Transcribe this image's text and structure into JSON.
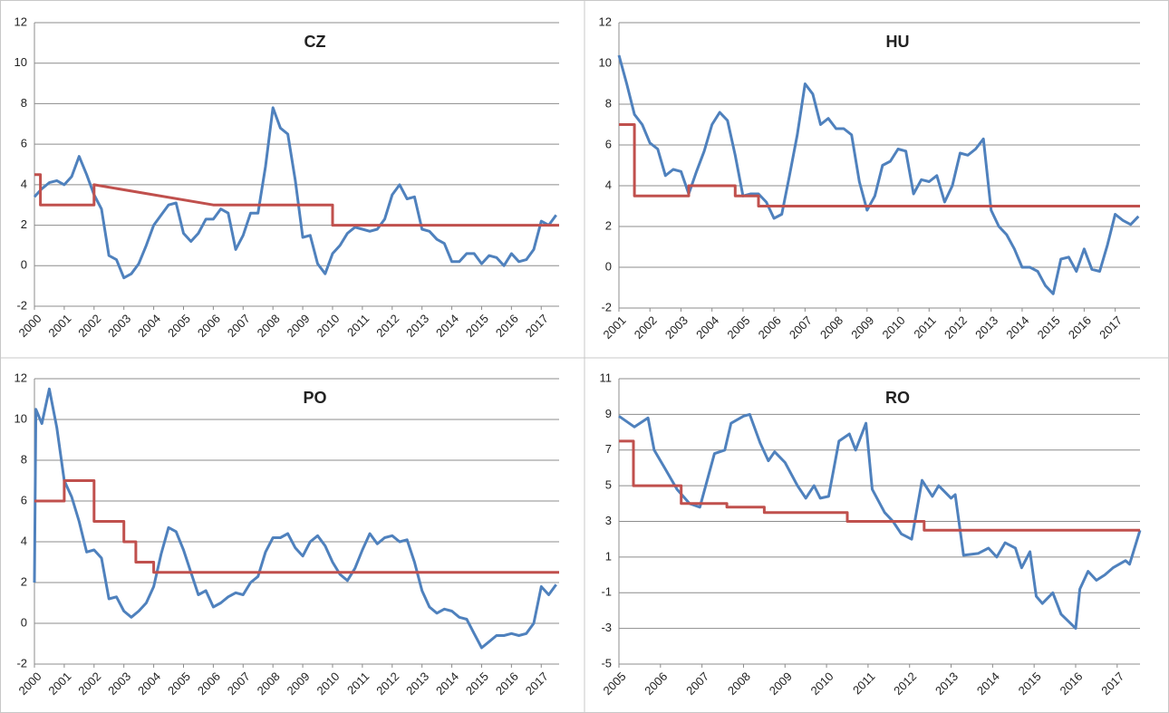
{
  "chart_data": [
    {
      "type": "line",
      "title": "CZ",
      "xlim": [
        2000,
        2017.6
      ],
      "xticks": [
        2000,
        2001,
        2002,
        2003,
        2004,
        2005,
        2006,
        2007,
        2008,
        2009,
        2010,
        2011,
        2012,
        2013,
        2014,
        2015,
        2016,
        2017
      ],
      "ylim": [
        -2,
        12
      ],
      "yticks": [
        -2,
        0,
        2,
        4,
        6,
        8,
        10,
        12
      ],
      "grid": true,
      "series": [
        {
          "color": "#4f81bd",
          "x": [
            2000,
            2000.25,
            2000.5,
            2000.75,
            2001,
            2001.25,
            2001.5,
            2001.75,
            2002,
            2002.25,
            2002.5,
            2002.75,
            2003,
            2003.25,
            2003.5,
            2003.75,
            2004,
            2004.25,
            2004.5,
            2004.75,
            2005,
            2005.25,
            2005.5,
            2005.75,
            2006,
            2006.25,
            2006.5,
            2006.75,
            2007,
            2007.25,
            2007.5,
            2007.75,
            2008,
            2008.25,
            2008.5,
            2008.75,
            2009,
            2009.25,
            2009.5,
            2009.75,
            2010,
            2010.25,
            2010.5,
            2010.75,
            2011,
            2011.25,
            2011.5,
            2011.75,
            2012,
            2012.25,
            2012.5,
            2012.75,
            2013,
            2013.25,
            2013.5,
            2013.75,
            2014,
            2014.25,
            2014.5,
            2014.75,
            2015,
            2015.25,
            2015.5,
            2015.75,
            2016,
            2016.25,
            2016.5,
            2016.75,
            2017,
            2017.25,
            2017.5
          ],
          "values": [
            3.4,
            3.8,
            4.1,
            4.2,
            4.0,
            4.4,
            5.4,
            4.5,
            3.5,
            2.8,
            0.5,
            0.3,
            -0.6,
            -0.4,
            0.1,
            1.0,
            2.0,
            2.5,
            3.0,
            3.1,
            1.6,
            1.2,
            1.6,
            2.3,
            2.3,
            2.8,
            2.6,
            0.8,
            1.5,
            2.6,
            2.6,
            4.9,
            7.8,
            6.8,
            6.5,
            4.2,
            1.4,
            1.5,
            0.1,
            -0.4,
            0.6,
            1.0,
            1.6,
            1.9,
            1.8,
            1.7,
            1.8,
            2.3,
            3.5,
            4.0,
            3.3,
            3.4,
            1.8,
            1.7,
            1.3,
            1.1,
            0.2,
            0.2,
            0.6,
            0.6,
            0.1,
            0.5,
            0.4,
            0.0,
            0.6,
            0.2,
            0.3,
            0.8,
            2.2,
            2.0,
            2.5
          ]
        },
        {
          "color": "#c0504d",
          "x": [
            2000,
            2000.2,
            2000.2,
            2002,
            2002,
            2006,
            2010,
            2010,
            2017.6
          ],
          "values": [
            4.5,
            4.5,
            3,
            3,
            4,
            3,
            3,
            2,
            2
          ]
        }
      ]
    },
    {
      "type": "line",
      "title": "HU",
      "xlim": [
        2001,
        2017.8
      ],
      "xticks": [
        2001,
        2002,
        2003,
        2004,
        2005,
        2006,
        2007,
        2008,
        2009,
        2010,
        2011,
        2012,
        2013,
        2014,
        2015,
        2016,
        2017
      ],
      "ylim": [
        -2,
        12
      ],
      "yticks": [
        -2,
        0,
        2,
        4,
        6,
        8,
        10,
        12
      ],
      "grid": true,
      "series": [
        {
          "color": "#4f81bd",
          "x": [
            2001,
            2001.25,
            2001.5,
            2001.75,
            2002,
            2002.25,
            2002.5,
            2002.75,
            2003,
            2003.25,
            2003.5,
            2003.75,
            2004,
            2004.25,
            2004.5,
            2004.75,
            2005,
            2005.25,
            2005.5,
            2005.75,
            2006,
            2006.25,
            2006.5,
            2006.75,
            2007,
            2007.25,
            2007.5,
            2007.75,
            2008,
            2008.25,
            2008.5,
            2008.75,
            2009,
            2009.25,
            2009.5,
            2009.75,
            2010,
            2010.25,
            2010.5,
            2010.75,
            2011,
            2011.25,
            2011.5,
            2011.75,
            2012,
            2012.25,
            2012.5,
            2012.75,
            2013,
            2013.25,
            2013.5,
            2013.75,
            2014,
            2014.25,
            2014.5,
            2014.75,
            2015,
            2015.25,
            2015.5,
            2015.75,
            2016,
            2016.25,
            2016.5,
            2016.75,
            2017,
            2017.25,
            2017.5,
            2017.75
          ],
          "values": [
            10.4,
            9,
            7.5,
            7.0,
            6.1,
            5.8,
            4.5,
            4.8,
            4.7,
            3.6,
            4.7,
            5.7,
            7.0,
            7.6,
            7.2,
            5.5,
            3.5,
            3.6,
            3.6,
            3.2,
            2.4,
            2.6,
            4.5,
            6.5,
            9.0,
            8.5,
            7.0,
            7.3,
            6.8,
            6.8,
            6.5,
            4.2,
            2.8,
            3.5,
            5.0,
            5.2,
            5.8,
            5.7,
            3.6,
            4.3,
            4.2,
            4.5,
            3.2,
            4.0,
            5.6,
            5.5,
            5.8,
            6.3,
            2.8,
            2.0,
            1.6,
            0.9,
            0.0,
            0.0,
            -0.2,
            -0.9,
            -1.3,
            0.4,
            0.5,
            -0.2,
            0.9,
            -0.1,
            -0.2,
            1.1,
            2.6,
            2.3,
            2.1,
            2.5
          ]
        },
        {
          "color": "#c0504d",
          "x": [
            2001,
            2001.5,
            2001.5,
            2003.25,
            2003.25,
            2004.75,
            2004.75,
            2005.5,
            2005.5,
            2017.8
          ],
          "values": [
            7,
            7,
            3.5,
            3.5,
            4,
            4,
            3.5,
            3.5,
            3,
            3
          ]
        }
      ]
    },
    {
      "type": "line",
      "title": "PO",
      "xlim": [
        2000,
        2017.6
      ],
      "xticks": [
        2000,
        2001,
        2002,
        2003,
        2004,
        2005,
        2006,
        2007,
        2008,
        2009,
        2010,
        2011,
        2012,
        2013,
        2014,
        2015,
        2016,
        2017
      ],
      "ylim": [
        -2,
        12
      ],
      "yticks": [
        -2,
        0,
        2,
        4,
        6,
        8,
        10,
        12
      ],
      "grid": true,
      "series": [
        {
          "color": "#4f81bd",
          "x": [
            2000,
            2000.05,
            2000.25,
            2000.5,
            2000.75,
            2001,
            2001.25,
            2001.5,
            2001.75,
            2002,
            2002.25,
            2002.5,
            2002.75,
            2003,
            2003.25,
            2003.5,
            2003.75,
            2004,
            2004.25,
            2004.5,
            2004.75,
            2005,
            2005.25,
            2005.5,
            2005.75,
            2006,
            2006.25,
            2006.5,
            2006.75,
            2007,
            2007.25,
            2007.5,
            2007.75,
            2008,
            2008.25,
            2008.5,
            2008.75,
            2009,
            2009.25,
            2009.5,
            2009.75,
            2010,
            2010.25,
            2010.5,
            2010.75,
            2011,
            2011.25,
            2011.5,
            2011.75,
            2012,
            2012.25,
            2012.5,
            2012.75,
            2013,
            2013.25,
            2013.5,
            2013.75,
            2014,
            2014.25,
            2014.5,
            2014.75,
            2015,
            2015.25,
            2015.5,
            2015.75,
            2016,
            2016.25,
            2016.5,
            2016.75,
            2017,
            2017.25,
            2017.5
          ],
          "values": [
            2.0,
            10.5,
            9.8,
            11.5,
            9.6,
            7.0,
            6.2,
            5.0,
            3.5,
            3.6,
            3.2,
            1.2,
            1.3,
            0.6,
            0.3,
            0.6,
            1.0,
            1.8,
            3.4,
            4.7,
            4.5,
            3.6,
            2.5,
            1.4,
            1.6,
            0.8,
            1.0,
            1.3,
            1.5,
            1.4,
            2.0,
            2.3,
            3.5,
            4.2,
            4.2,
            4.4,
            3.7,
            3.3,
            4.0,
            4.3,
            3.8,
            3.0,
            2.4,
            2.1,
            2.7,
            3.6,
            4.4,
            3.9,
            4.2,
            4.3,
            4.0,
            4.1,
            3.0,
            1.6,
            0.8,
            0.5,
            0.7,
            0.6,
            0.3,
            0.2,
            -0.5,
            -1.2,
            -0.9,
            -0.6,
            -0.6,
            -0.5,
            -0.6,
            -0.5,
            0.0,
            1.8,
            1.4,
            1.9
          ]
        },
        {
          "color": "#c0504d",
          "x": [
            2000,
            2001,
            2001,
            2002,
            2002,
            2003,
            2003,
            2003.4,
            2003.4,
            2004,
            2004,
            2017.6
          ],
          "values": [
            6,
            6,
            7,
            7,
            5,
            5,
            4,
            4,
            3,
            3,
            2.5,
            2.5
          ]
        }
      ]
    },
    {
      "type": "line",
      "title": "RO",
      "xlim": [
        2005,
        2017.55
      ],
      "xticks": [
        2005,
        2006,
        2007,
        2008,
        2009,
        2010,
        2011,
        2012,
        2013,
        2014,
        2015,
        2016,
        2017
      ],
      "ylim": [
        -5,
        11
      ],
      "yticks": [
        -5,
        -3,
        -1,
        1,
        3,
        5,
        7,
        9,
        11
      ],
      "grid": true,
      "series": [
        {
          "color": "#4f81bd",
          "x": [
            2005,
            2005.37,
            2005.7,
            2005.85,
            2006.1,
            2006.4,
            2006.7,
            2006.95,
            2007.3,
            2007.55,
            2007.7,
            2008.0,
            2008.15,
            2008.4,
            2008.6,
            2008.75,
            2009.0,
            2009.3,
            2009.5,
            2009.7,
            2009.85,
            2010.05,
            2010.3,
            2010.55,
            2010.7,
            2010.95,
            2011.1,
            2011.4,
            2011.6,
            2011.8,
            2012.05,
            2012.3,
            2012.55,
            2012.7,
            2013.0,
            2013.1,
            2013.3,
            2013.65,
            2013.9,
            2014.1,
            2014.3,
            2014.55,
            2014.7,
            2014.9,
            2015.05,
            2015.2,
            2015.45,
            2015.65,
            2016.0,
            2016.1,
            2016.3,
            2016.5,
            2016.7,
            2016.9,
            2017.2,
            2017.3,
            2017.55
          ],
          "values": [
            8.9,
            8.3,
            8.8,
            7.0,
            6.0,
            4.8,
            4.0,
            3.8,
            6.8,
            7.0,
            8.5,
            8.9,
            9.0,
            7.4,
            6.4,
            6.9,
            6.3,
            5.0,
            4.3,
            5.0,
            4.3,
            4.4,
            7.5,
            7.9,
            7.0,
            8.5,
            4.8,
            3.5,
            3.0,
            2.3,
            2.0,
            5.3,
            4.4,
            5.0,
            4.3,
            4.5,
            1.1,
            1.2,
            1.5,
            1.0,
            1.8,
            1.5,
            0.4,
            1.3,
            -1.2,
            -1.6,
            -1.0,
            -2.2,
            -3.0,
            -0.8,
            0.2,
            -0.3,
            0.0,
            0.4,
            0.8,
            0.6,
            2.5
          ]
        },
        {
          "color": "#c0504d",
          "x": [
            2005,
            2005.35,
            2005.35,
            2006.5,
            2006.5,
            2007.6,
            2007.6,
            2008.5,
            2008.5,
            2010.5,
            2010.5,
            2012.35,
            2012.35,
            2017.55
          ],
          "values": [
            7.5,
            7.5,
            5,
            5,
            4,
            4,
            3.8,
            3.8,
            3.5,
            3.5,
            3,
            3,
            2.5,
            2.5
          ]
        }
      ]
    }
  ]
}
